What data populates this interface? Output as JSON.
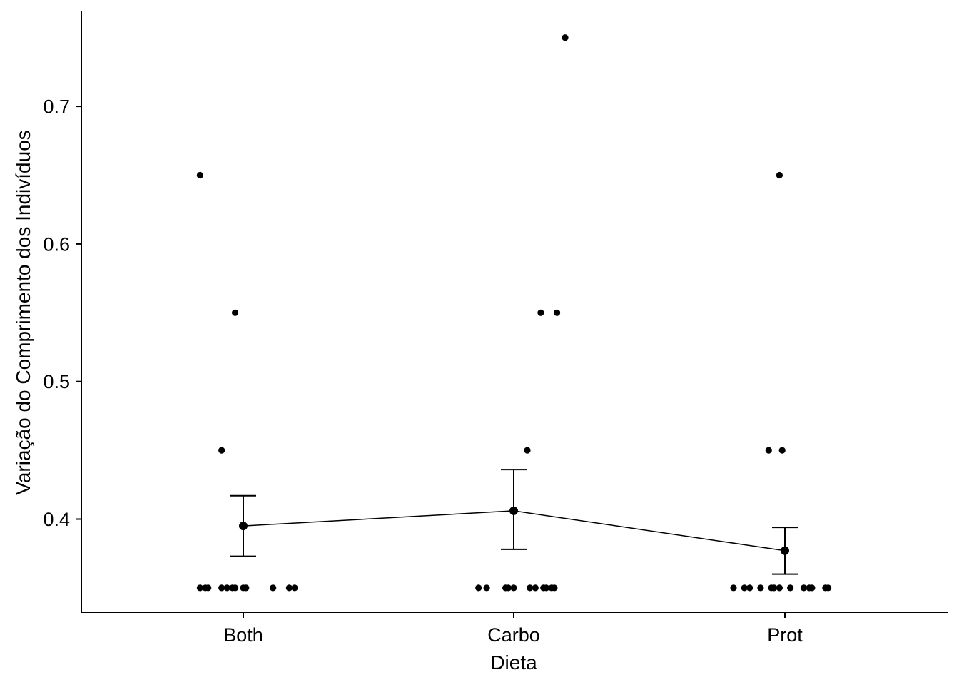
{
  "chart_data": {
    "type": "scatter",
    "xlabel": "Dieta",
    "ylabel": "Variação do Comprimento dos Indivíduos",
    "categories": [
      "Both",
      "Carbo",
      "Prot"
    ],
    "y_ticks": [
      "0.4",
      "0.5",
      "0.6",
      "0.7"
    ],
    "ylim": [
      0.33,
      0.77
    ],
    "grid": false,
    "legend": "none",
    "points": [
      {
        "group": "Both",
        "jitter": -0.16,
        "y": 0.65
      },
      {
        "group": "Both",
        "jitter": -0.03,
        "y": 0.55
      },
      {
        "group": "Both",
        "jitter": -0.08,
        "y": 0.45
      },
      {
        "group": "Both",
        "jitter": -0.16,
        "y": 0.35
      },
      {
        "group": "Both",
        "jitter": -0.14,
        "y": 0.35
      },
      {
        "group": "Both",
        "jitter": -0.13,
        "y": 0.35
      },
      {
        "group": "Both",
        "jitter": -0.08,
        "y": 0.35
      },
      {
        "group": "Both",
        "jitter": -0.06,
        "y": 0.35
      },
      {
        "group": "Both",
        "jitter": -0.04,
        "y": 0.35
      },
      {
        "group": "Both",
        "jitter": -0.03,
        "y": 0.35
      },
      {
        "group": "Both",
        "jitter": 0.0,
        "y": 0.35
      },
      {
        "group": "Both",
        "jitter": 0.01,
        "y": 0.35
      },
      {
        "group": "Both",
        "jitter": 0.11,
        "y": 0.35
      },
      {
        "group": "Both",
        "jitter": 0.17,
        "y": 0.35
      },
      {
        "group": "Both",
        "jitter": 0.19,
        "y": 0.35
      },
      {
        "group": "Carbo",
        "jitter": 0.19,
        "y": 0.75
      },
      {
        "group": "Carbo",
        "jitter": 0.1,
        "y": 0.55
      },
      {
        "group": "Carbo",
        "jitter": 0.16,
        "y": 0.55
      },
      {
        "group": "Carbo",
        "jitter": 0.05,
        "y": 0.45
      },
      {
        "group": "Carbo",
        "jitter": -0.13,
        "y": 0.35
      },
      {
        "group": "Carbo",
        "jitter": -0.1,
        "y": 0.35
      },
      {
        "group": "Carbo",
        "jitter": -0.03,
        "y": 0.35
      },
      {
        "group": "Carbo",
        "jitter": -0.02,
        "y": 0.35
      },
      {
        "group": "Carbo",
        "jitter": 0.0,
        "y": 0.35
      },
      {
        "group": "Carbo",
        "jitter": 0.06,
        "y": 0.35
      },
      {
        "group": "Carbo",
        "jitter": 0.08,
        "y": 0.35
      },
      {
        "group": "Carbo",
        "jitter": 0.11,
        "y": 0.35
      },
      {
        "group": "Carbo",
        "jitter": 0.12,
        "y": 0.35
      },
      {
        "group": "Carbo",
        "jitter": 0.14,
        "y": 0.35
      },
      {
        "group": "Carbo",
        "jitter": 0.15,
        "y": 0.35
      },
      {
        "group": "Prot",
        "jitter": -0.02,
        "y": 0.65
      },
      {
        "group": "Prot",
        "jitter": -0.06,
        "y": 0.45
      },
      {
        "group": "Prot",
        "jitter": -0.01,
        "y": 0.45
      },
      {
        "group": "Prot",
        "jitter": -0.19,
        "y": 0.35
      },
      {
        "group": "Prot",
        "jitter": -0.15,
        "y": 0.35
      },
      {
        "group": "Prot",
        "jitter": -0.13,
        "y": 0.35
      },
      {
        "group": "Prot",
        "jitter": -0.09,
        "y": 0.35
      },
      {
        "group": "Prot",
        "jitter": -0.05,
        "y": 0.35
      },
      {
        "group": "Prot",
        "jitter": -0.04,
        "y": 0.35
      },
      {
        "group": "Prot",
        "jitter": -0.02,
        "y": 0.35
      },
      {
        "group": "Prot",
        "jitter": 0.02,
        "y": 0.35
      },
      {
        "group": "Prot",
        "jitter": 0.07,
        "y": 0.35
      },
      {
        "group": "Prot",
        "jitter": 0.09,
        "y": 0.35
      },
      {
        "group": "Prot",
        "jitter": 0.1,
        "y": 0.35
      },
      {
        "group": "Prot",
        "jitter": 0.15,
        "y": 0.35
      },
      {
        "group": "Prot",
        "jitter": 0.16,
        "y": 0.35
      }
    ],
    "summary": [
      {
        "group": "Both",
        "mean": 0.395,
        "lower": 0.373,
        "upper": 0.417
      },
      {
        "group": "Carbo",
        "mean": 0.406,
        "lower": 0.378,
        "upper": 0.436
      },
      {
        "group": "Prot",
        "mean": 0.377,
        "lower": 0.36,
        "upper": 0.394
      }
    ]
  }
}
